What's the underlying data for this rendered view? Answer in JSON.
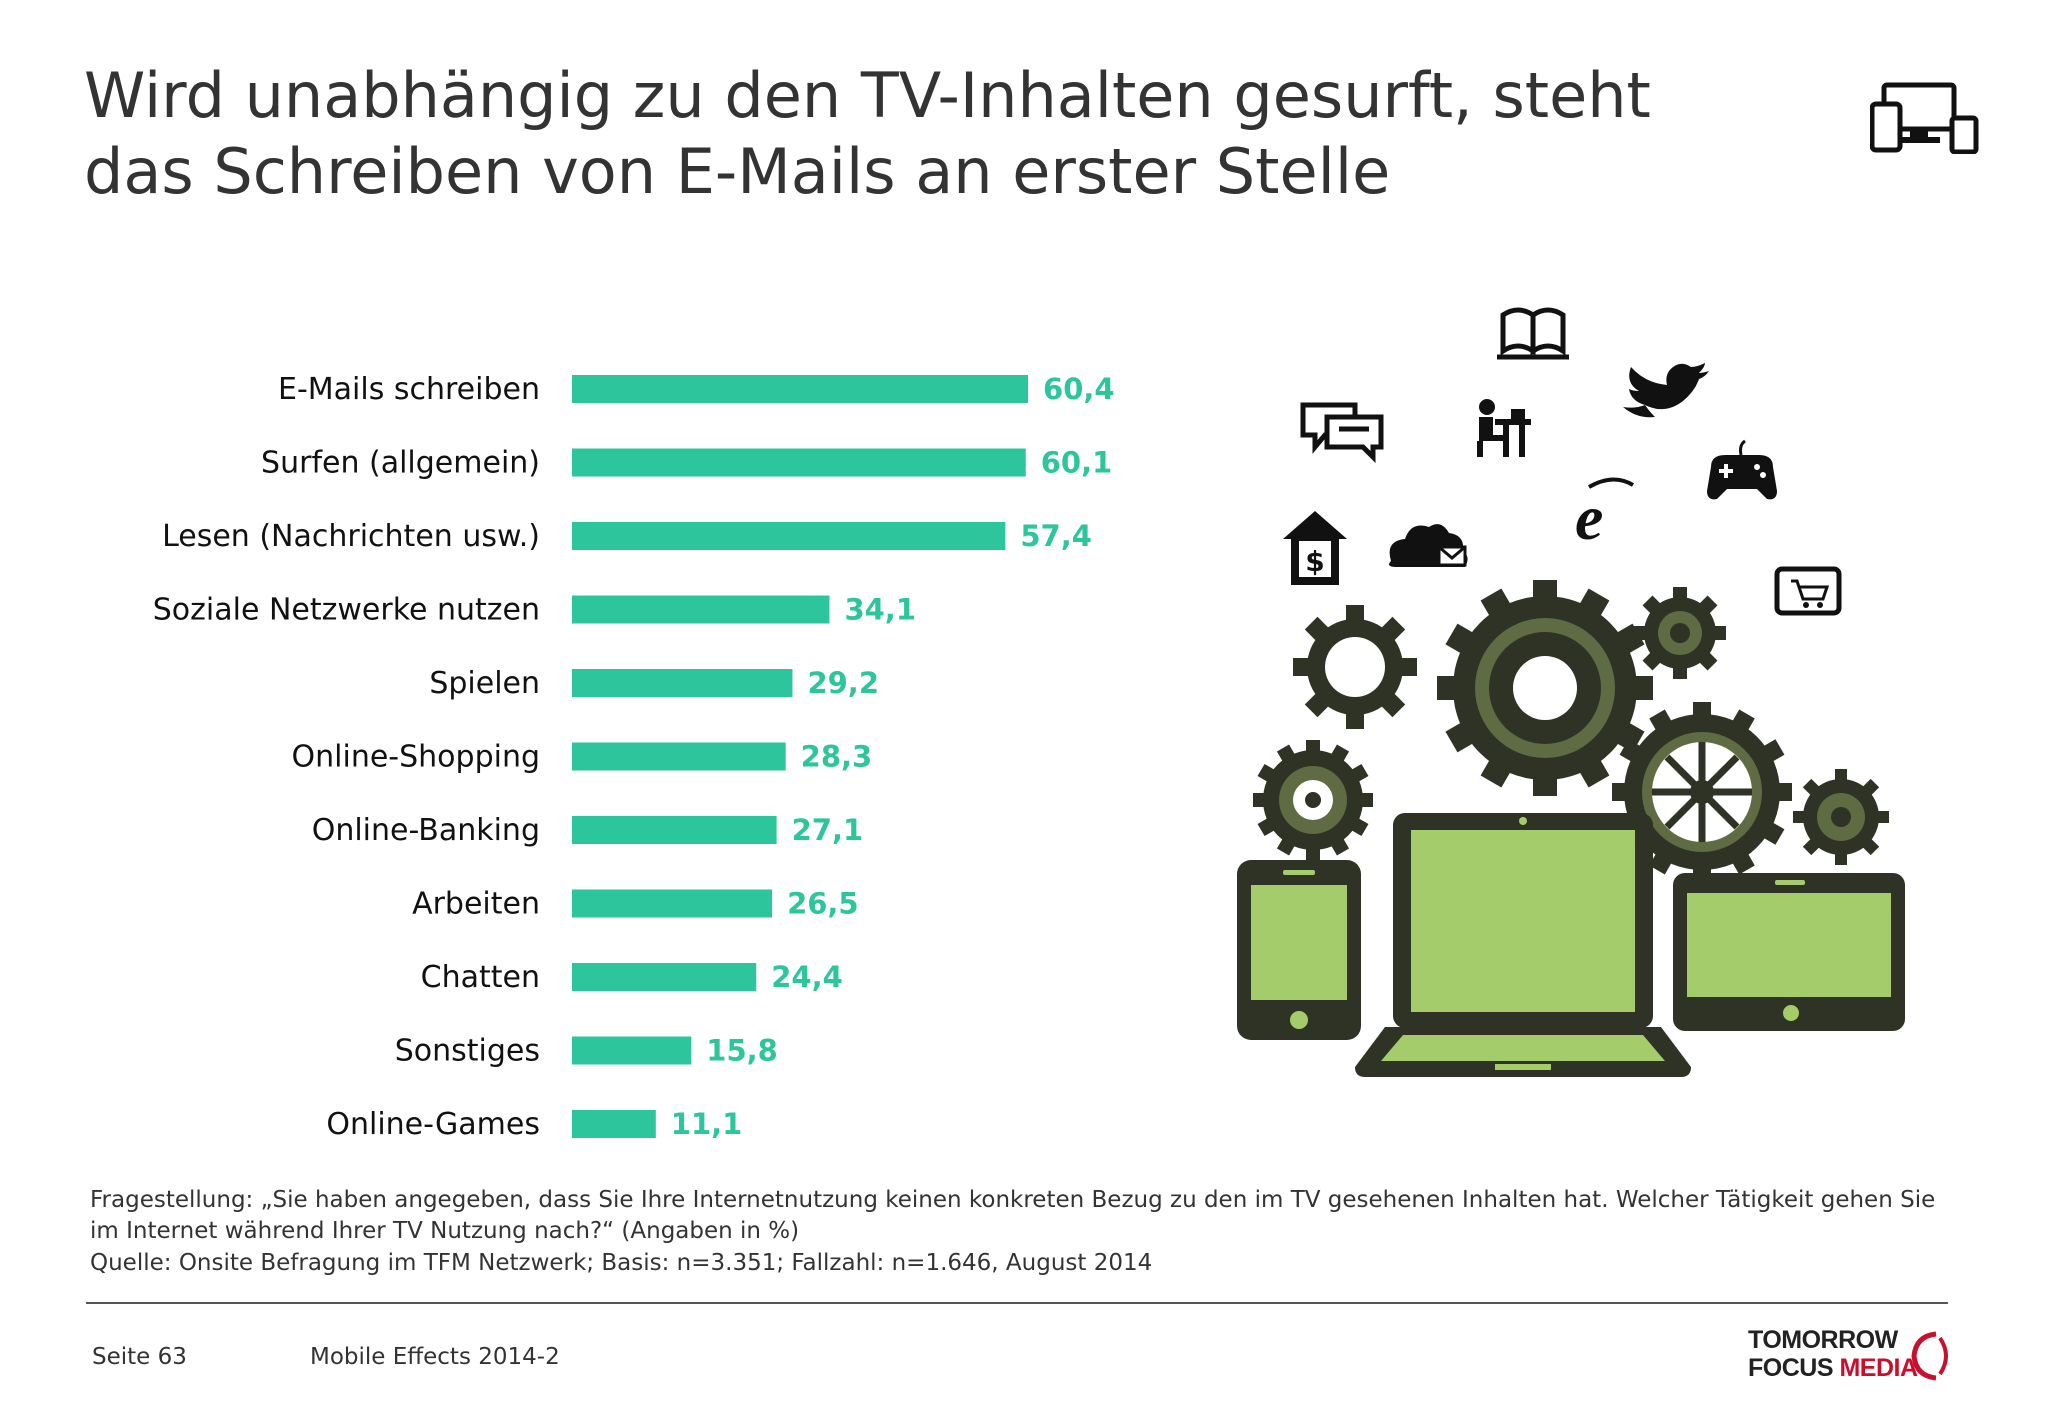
{
  "title": {
    "line1": "Wird unabhängig zu den TV-Inhalten gesurft, steht",
    "line2": "das Schreiben von E-Mails an erster Stelle"
  },
  "chart_data": {
    "type": "bar",
    "orientation": "horizontal",
    "categories": [
      "E-Mails schreiben",
      "Surfen (allgemein)",
      "Lesen (Nachrichten usw.)",
      "Soziale Netzwerke nutzen",
      "Spielen",
      "Online-Shopping",
      "Online-Banking",
      "Arbeiten",
      "Chatten",
      "Sonstiges",
      "Online-Games"
    ],
    "values": [
      60.4,
      60.1,
      57.4,
      34.1,
      29.2,
      28.3,
      27.1,
      26.5,
      24.4,
      15.8,
      11.1
    ],
    "value_labels": [
      "60,4",
      "60,1",
      "57,4",
      "34,1",
      "29,2",
      "28,3",
      "27,1",
      "26,5",
      "24,4",
      "15,8",
      "11,1"
    ],
    "bar_color": "#2dc59b",
    "label_color": "#2dc59b",
    "xlim": [
      0,
      100
    ],
    "grid": false,
    "axes_visible": false
  },
  "footnote": {
    "question": "Fragestellung: „Sie haben angegeben, dass Sie Ihre Internetnutzung keinen konkreten Bezug zu den im TV gesehenen Inhalten hat. Welcher Tätigkeit gehen Sie im Internet während Ihrer TV Nutzung nach?“ (Angaben in %)",
    "source": "Quelle: Onsite Befragung im TFM Netzwerk; Basis: n=3.351; Fallzahl: n=1.646, August 2014"
  },
  "footer": {
    "page": "Seite 63",
    "document": "Mobile Effects 2014-2",
    "logo_line1": "TOMORROW",
    "logo_focus": "FOCUS",
    "logo_media": "MEDIA"
  },
  "colors": {
    "text": "#333333",
    "bar": "#2dc59b",
    "gear": "#2e3325",
    "screen": "#a5cc6b",
    "logo_red": "#c8102e"
  },
  "icons": [
    "multi-device-icon",
    "book-icon",
    "chat-bubbles-icon",
    "desk-worker-icon",
    "twitter-bird-icon",
    "gamepad-icon",
    "internet-explorer-icon",
    "home-dollar-icon",
    "cloud-mail-icon",
    "shopping-cart-tablet-icon",
    "gear-icon",
    "smartphone-icon",
    "laptop-icon",
    "tablet-icon"
  ]
}
